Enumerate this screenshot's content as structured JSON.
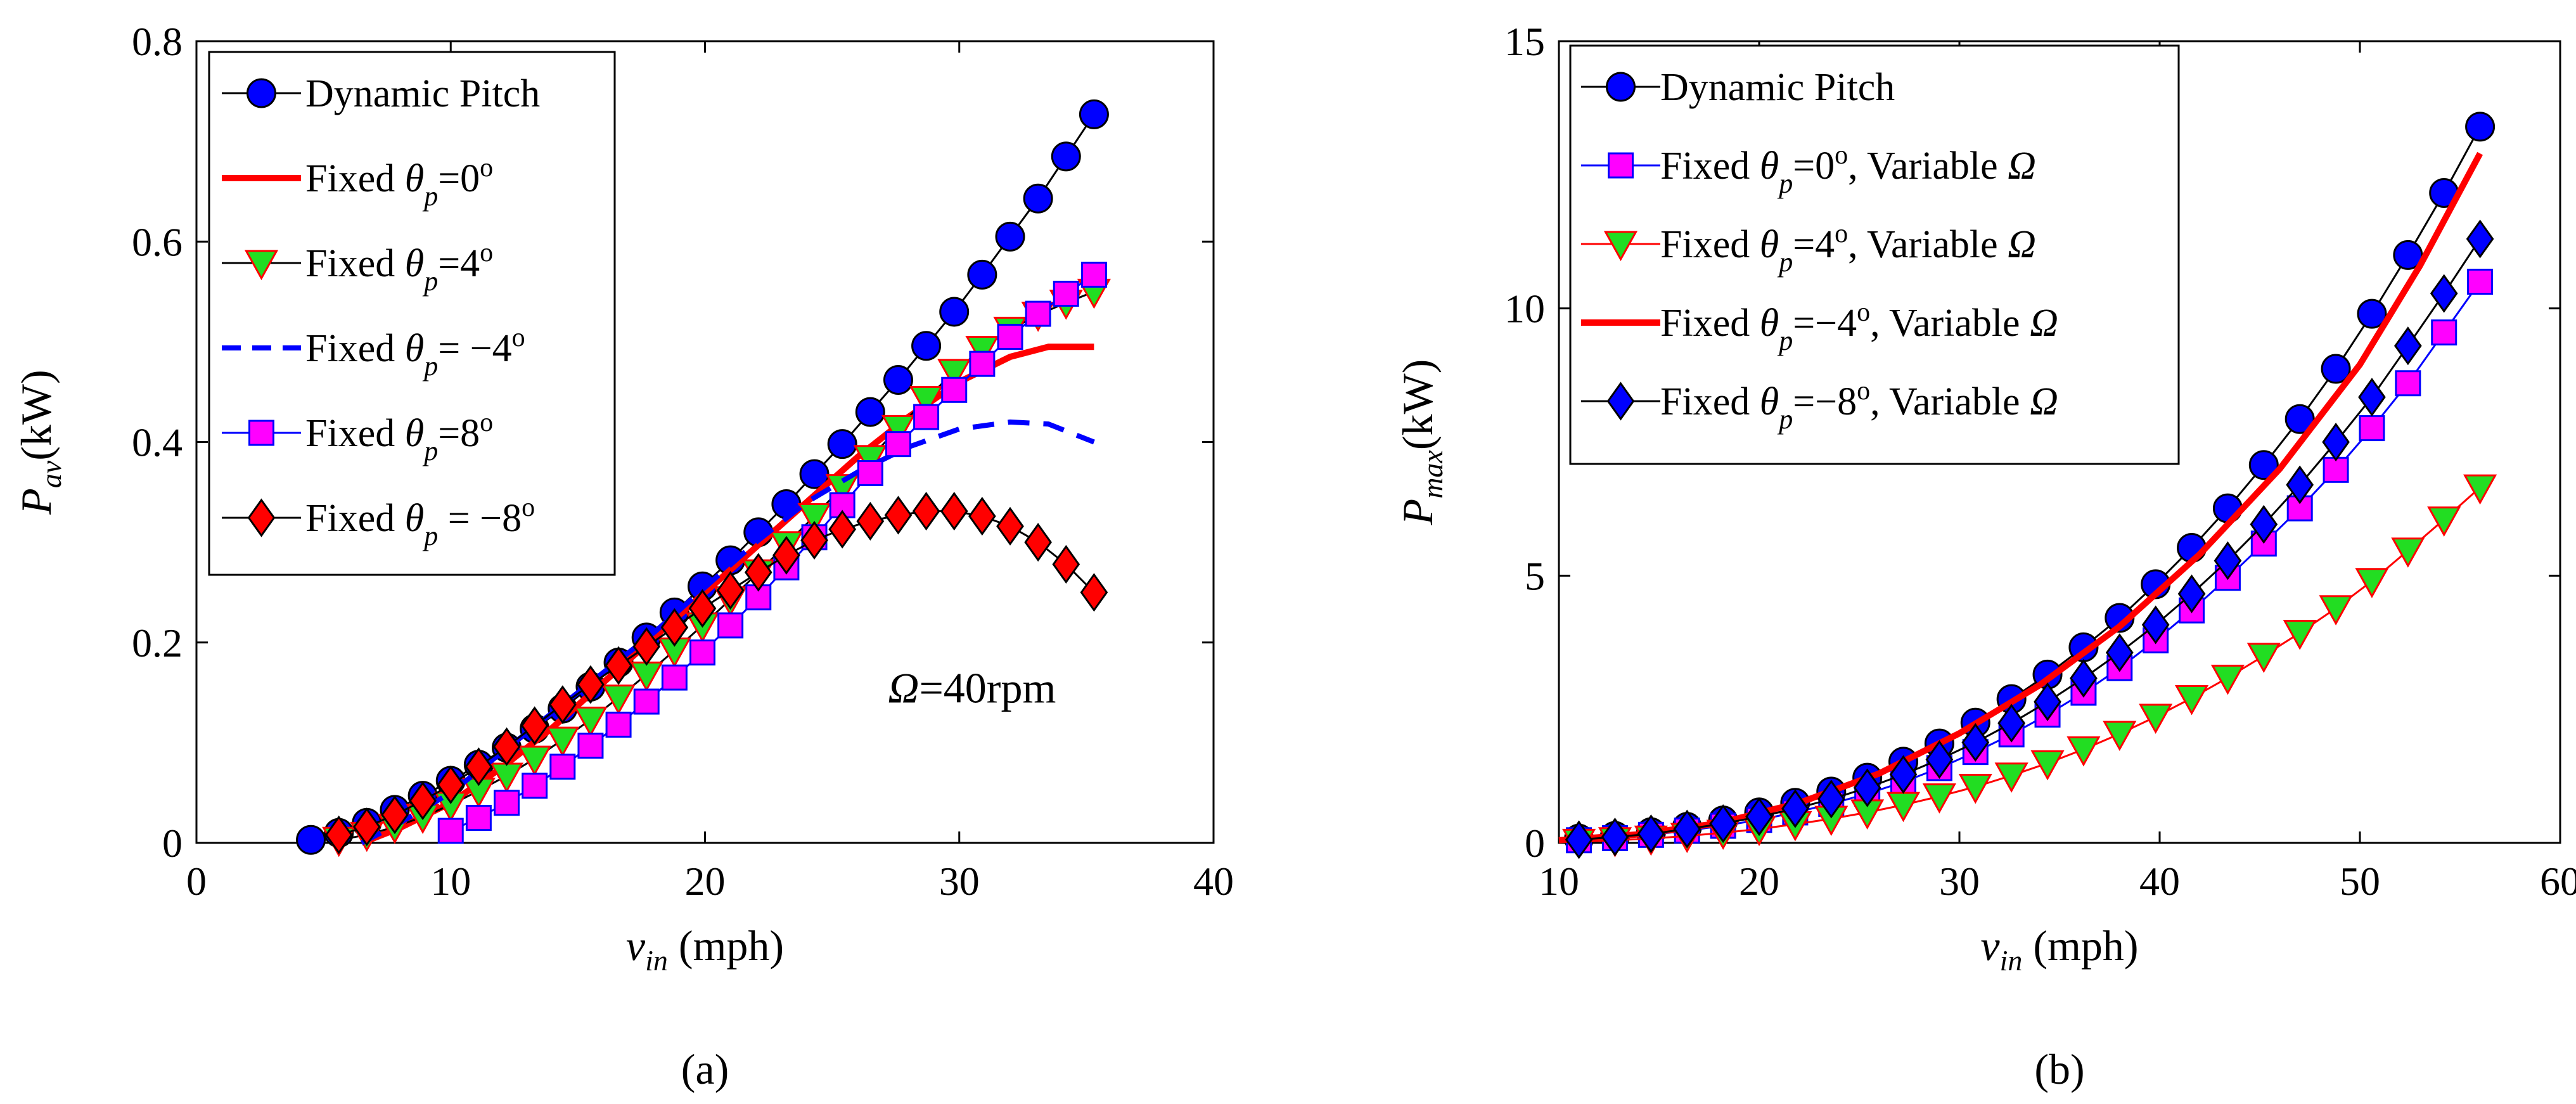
{
  "chart_data": [
    {
      "type": "line",
      "panel_label": "(a)",
      "xlabel": {
        "main": "v",
        "sub": "in",
        "suffix": " (mph)"
      },
      "ylabel": {
        "main": "P",
        "sub": "av",
        "suffix": "(kW)"
      },
      "xlim": [
        0,
        40
      ],
      "ylim": [
        0,
        0.8
      ],
      "xticks": [
        0,
        10,
        20,
        30,
        40
      ],
      "yticks": [
        0,
        0.2,
        0.4,
        0.6,
        0.8
      ],
      "xtick_labels": [
        "0",
        "10",
        "20",
        "30",
        "40"
      ],
      "ytick_labels": [
        "0",
        "0.2",
        "0.4",
        "0.6",
        "0.8"
      ],
      "annotation": {
        "symbol": "Ω",
        "text": "=40rpm",
        "x": 30.5,
        "y": 0.14
      },
      "legend_position": "top-left",
      "series": [
        {
          "name": "Dynamic Pitch",
          "label_parts": [
            "Dynamic Pitch"
          ],
          "marker": "circle",
          "marker_fill": "#0000ff",
          "line": "solid",
          "color": "#000000",
          "x": [
            4.5,
            5.6,
            6.7,
            7.8,
            8.9,
            10.0,
            11.1,
            12.2,
            13.3,
            14.4,
            15.5,
            16.6,
            17.7,
            18.8,
            19.9,
            21.0,
            22.1,
            23.2,
            24.3,
            25.4,
            26.5,
            27.6,
            28.7,
            29.8,
            30.9,
            32.0,
            33.1,
            34.2,
            35.3
          ],
          "y": [
            0.003,
            0.01,
            0.02,
            0.033,
            0.047,
            0.062,
            0.078,
            0.095,
            0.114,
            0.134,
            0.156,
            0.18,
            0.205,
            0.23,
            0.256,
            0.282,
            0.31,
            0.338,
            0.368,
            0.398,
            0.43,
            0.462,
            0.496,
            0.53,
            0.567,
            0.605,
            0.643,
            0.685,
            0.727
          ]
        },
        {
          "name": "Fixed θp=0°",
          "label_parts": [
            "Fixed ",
            "θ",
            "p",
            "=0",
            "o",
            ""
          ],
          "marker": "none",
          "line": "solid",
          "color": "#ff0000",
          "stroke_width": 10,
          "x": [
            6.5,
            8,
            10,
            12,
            14,
            16,
            18,
            20,
            22,
            24,
            26,
            28,
            30,
            32,
            33.5,
            35.3
          ],
          "y": [
            0.0,
            0.015,
            0.04,
            0.075,
            0.115,
            0.16,
            0.205,
            0.25,
            0.295,
            0.34,
            0.385,
            0.425,
            0.46,
            0.485,
            0.495,
            0.495
          ]
        },
        {
          "name": "Fixed θp=4°",
          "label_parts": [
            "Fixed ",
            "θ",
            "p",
            "=4",
            "o",
            ""
          ],
          "marker": "triangle-down",
          "marker_fill": "#22dd22",
          "marker_stroke": "#ff0000",
          "line": "solid",
          "color": "#000000",
          "x": [
            5.6,
            6.7,
            7.8,
            8.9,
            10.0,
            11.1,
            12.2,
            13.3,
            14.4,
            15.5,
            16.6,
            17.7,
            18.8,
            19.9,
            21.0,
            22.1,
            23.2,
            24.3,
            25.4,
            26.5,
            27.6,
            28.7,
            29.8,
            30.9,
            32.0,
            33.1,
            34.2,
            35.3
          ],
          "y": [
            0.003,
            0.008,
            0.016,
            0.026,
            0.038,
            0.052,
            0.067,
            0.084,
            0.103,
            0.123,
            0.145,
            0.168,
            0.192,
            0.217,
            0.243,
            0.27,
            0.298,
            0.326,
            0.355,
            0.384,
            0.414,
            0.443,
            0.47,
            0.493,
            0.512,
            0.527,
            0.539,
            0.55
          ]
        },
        {
          "name": "Fixed θp = −4°",
          "label_parts": [
            "Fixed ",
            "θ",
            "p",
            "= −4",
            "o",
            ""
          ],
          "marker": "none",
          "line": "dashed",
          "color": "#0000ff",
          "stroke_width": 8,
          "x": [
            6.5,
            8,
            10,
            12,
            14,
            16,
            18,
            20,
            22,
            24,
            26,
            28,
            30,
            32,
            33.5,
            35.3
          ],
          "y": [
            0.0,
            0.02,
            0.05,
            0.09,
            0.13,
            0.17,
            0.21,
            0.255,
            0.3,
            0.34,
            0.37,
            0.395,
            0.413,
            0.42,
            0.418,
            0.4
          ]
        },
        {
          "name": "Fixed θp=8°",
          "label_parts": [
            "Fixed ",
            "θ",
            "p",
            "=8",
            "o",
            ""
          ],
          "marker": "square",
          "marker_fill": "#ff00ff",
          "marker_stroke": "#0000ff",
          "line": "solid",
          "color": "#0000ff",
          "x": [
            10.0,
            11.1,
            12.2,
            13.3,
            14.4,
            15.5,
            16.6,
            17.7,
            18.8,
            19.9,
            21.0,
            22.1,
            23.2,
            24.3,
            25.4,
            26.5,
            27.6,
            28.7,
            29.8,
            30.9,
            32.0,
            33.1,
            34.2,
            35.3
          ],
          "y": [
            0.012,
            0.025,
            0.04,
            0.057,
            0.076,
            0.097,
            0.118,
            0.141,
            0.165,
            0.19,
            0.217,
            0.245,
            0.275,
            0.305,
            0.337,
            0.369,
            0.398,
            0.425,
            0.452,
            0.478,
            0.505,
            0.528,
            0.548,
            0.567
          ]
        },
        {
          "name": "Fixed θp = −8°",
          "label_parts": [
            "Fixed ",
            "θ",
            "p",
            " = −8",
            "o",
            ""
          ],
          "marker": "diamond",
          "marker_fill": "#ff0000",
          "marker_stroke": "#000000",
          "line": "solid",
          "color": "#000000",
          "x": [
            5.6,
            6.7,
            7.8,
            8.9,
            10.0,
            11.1,
            12.2,
            13.3,
            14.4,
            15.5,
            16.6,
            17.7,
            18.8,
            19.9,
            21.0,
            22.1,
            23.2,
            24.3,
            25.4,
            26.5,
            27.6,
            28.7,
            29.8,
            30.9,
            32.0,
            33.1,
            34.2,
            35.3
          ],
          "y": [
            0.008,
            0.016,
            0.028,
            0.042,
            0.058,
            0.076,
            0.096,
            0.117,
            0.138,
            0.158,
            0.177,
            0.196,
            0.215,
            0.234,
            0.252,
            0.27,
            0.287,
            0.302,
            0.313,
            0.321,
            0.327,
            0.331,
            0.331,
            0.326,
            0.316,
            0.3,
            0.278,
            0.25
          ]
        }
      ]
    },
    {
      "type": "line",
      "panel_label": "(b)",
      "xlabel": {
        "main": "v",
        "sub": "in",
        "suffix": " (mph)"
      },
      "ylabel": {
        "main": "P",
        "sub": "max",
        "suffix": "(kW)"
      },
      "xlim": [
        10,
        60
      ],
      "ylim": [
        0,
        15
      ],
      "xticks": [
        10,
        20,
        30,
        40,
        50,
        60
      ],
      "yticks": [
        0,
        5,
        10,
        15
      ],
      "xtick_labels": [
        "10",
        "20",
        "30",
        "40",
        "50",
        "60"
      ],
      "ytick_labels": [
        "0",
        "5",
        "10",
        "15"
      ],
      "legend_position": "top-left",
      "series": [
        {
          "name": "Dynamic Pitch",
          "label_parts": [
            "Dynamic Pitch"
          ],
          "marker": "circle",
          "marker_fill": "#0000ff",
          "line": "solid",
          "color": "#000000",
          "x": [
            11.0,
            12.8,
            14.6,
            16.4,
            18.2,
            20.0,
            21.8,
            23.6,
            25.4,
            27.2,
            29.0,
            30.8,
            32.6,
            34.4,
            36.2,
            38.0,
            39.8,
            41.6,
            43.4,
            45.2,
            47.0,
            48.8,
            50.6,
            52.4,
            54.2,
            56.0
          ],
          "y": [
            0.08,
            0.13,
            0.2,
            0.3,
            0.42,
            0.57,
            0.75,
            0.96,
            1.22,
            1.52,
            1.86,
            2.25,
            2.69,
            3.15,
            3.66,
            4.21,
            4.84,
            5.52,
            6.26,
            7.07,
            7.93,
            8.87,
            9.9,
            11.0,
            12.16,
            13.4
          ]
        },
        {
          "name": "Fixed θp=0°, Variable Ω",
          "label_parts": [
            "Fixed ",
            "θ",
            "p",
            "=0",
            "o",
            ", Variable ",
            "Ω"
          ],
          "marker": "square",
          "marker_fill": "#ff00ff",
          "marker_stroke": "#0000ff",
          "line": "solid",
          "color": "#0000ff",
          "x": [
            11.0,
            12.8,
            14.6,
            16.4,
            18.2,
            20.0,
            21.8,
            23.6,
            25.4,
            27.2,
            29.0,
            30.8,
            32.6,
            34.4,
            36.2,
            38.0,
            39.8,
            41.6,
            43.4,
            45.2,
            47.0,
            48.8,
            50.6,
            52.4,
            54.2,
            56.0
          ],
          "y": [
            0.05,
            0.09,
            0.15,
            0.23,
            0.32,
            0.43,
            0.57,
            0.73,
            0.92,
            1.14,
            1.4,
            1.7,
            2.03,
            2.4,
            2.81,
            3.27,
            3.79,
            4.35,
            4.96,
            5.6,
            6.26,
            6.98,
            7.76,
            8.6,
            9.55,
            10.5
          ]
        },
        {
          "name": "Fixed θp=4°, Variable Ω",
          "label_parts": [
            "Fixed ",
            "θ",
            "p",
            "=4",
            "o",
            ", Variable ",
            "Ω"
          ],
          "marker": "triangle-down",
          "marker_fill": "#22dd22",
          "marker_stroke": "#ff0000",
          "line": "solid",
          "color": "#ff0000",
          "x": [
            11.0,
            12.8,
            14.6,
            16.4,
            18.2,
            20.0,
            21.8,
            23.6,
            25.4,
            27.2,
            29.0,
            30.8,
            32.6,
            34.4,
            36.2,
            38.0,
            39.8,
            41.6,
            43.4,
            45.2,
            47.0,
            48.8,
            50.6,
            52.4,
            54.2,
            56.0
          ],
          "y": [
            0.02,
            0.05,
            0.08,
            0.13,
            0.19,
            0.26,
            0.35,
            0.45,
            0.57,
            0.71,
            0.87,
            1.05,
            1.26,
            1.49,
            1.75,
            2.04,
            2.36,
            2.71,
            3.09,
            3.5,
            3.93,
            4.39,
            4.9,
            5.47,
            6.05,
            6.65
          ]
        },
        {
          "name": "Fixed θp=−4°, Variable Ω",
          "label_parts": [
            "Fixed ",
            "θ",
            "p",
            "=−4",
            "o",
            ", Variable ",
            "Ω"
          ],
          "marker": "none",
          "line": "solid",
          "color": "#ff0000",
          "stroke_width": 10,
          "x": [
            10.0,
            14.0,
            18.0,
            22.0,
            26.0,
            30.0,
            34.0,
            38.0,
            42.0,
            46.0,
            50.0,
            53.0,
            56.0
          ],
          "y": [
            0.05,
            0.16,
            0.37,
            0.75,
            1.3,
            2.05,
            2.95,
            4.05,
            5.4,
            7.0,
            8.95,
            10.8,
            12.9
          ]
        },
        {
          "name": "Fixed θp=−8°, Variable Ω",
          "label_parts": [
            "Fixed ",
            "θ",
            "p",
            "=−8",
            "o",
            ", Variable ",
            "Ω"
          ],
          "marker": "diamond",
          "marker_fill": "#0000ff",
          "marker_stroke": "#000000",
          "line": "solid",
          "color": "#000000",
          "x": [
            11.0,
            12.8,
            14.6,
            16.4,
            18.2,
            20.0,
            21.8,
            23.6,
            25.4,
            27.2,
            29.0,
            30.8,
            32.6,
            34.4,
            36.2,
            38.0,
            39.8,
            41.6,
            43.4,
            45.2,
            47.0,
            48.8,
            50.6,
            52.4,
            54.2,
            56.0
          ],
          "y": [
            0.06,
            0.11,
            0.17,
            0.26,
            0.36,
            0.49,
            0.64,
            0.82,
            1.03,
            1.28,
            1.56,
            1.88,
            2.24,
            2.64,
            3.08,
            3.56,
            4.08,
            4.66,
            5.28,
            5.96,
            6.7,
            7.5,
            8.34,
            9.3,
            10.28,
            11.3
          ]
        }
      ]
    }
  ]
}
